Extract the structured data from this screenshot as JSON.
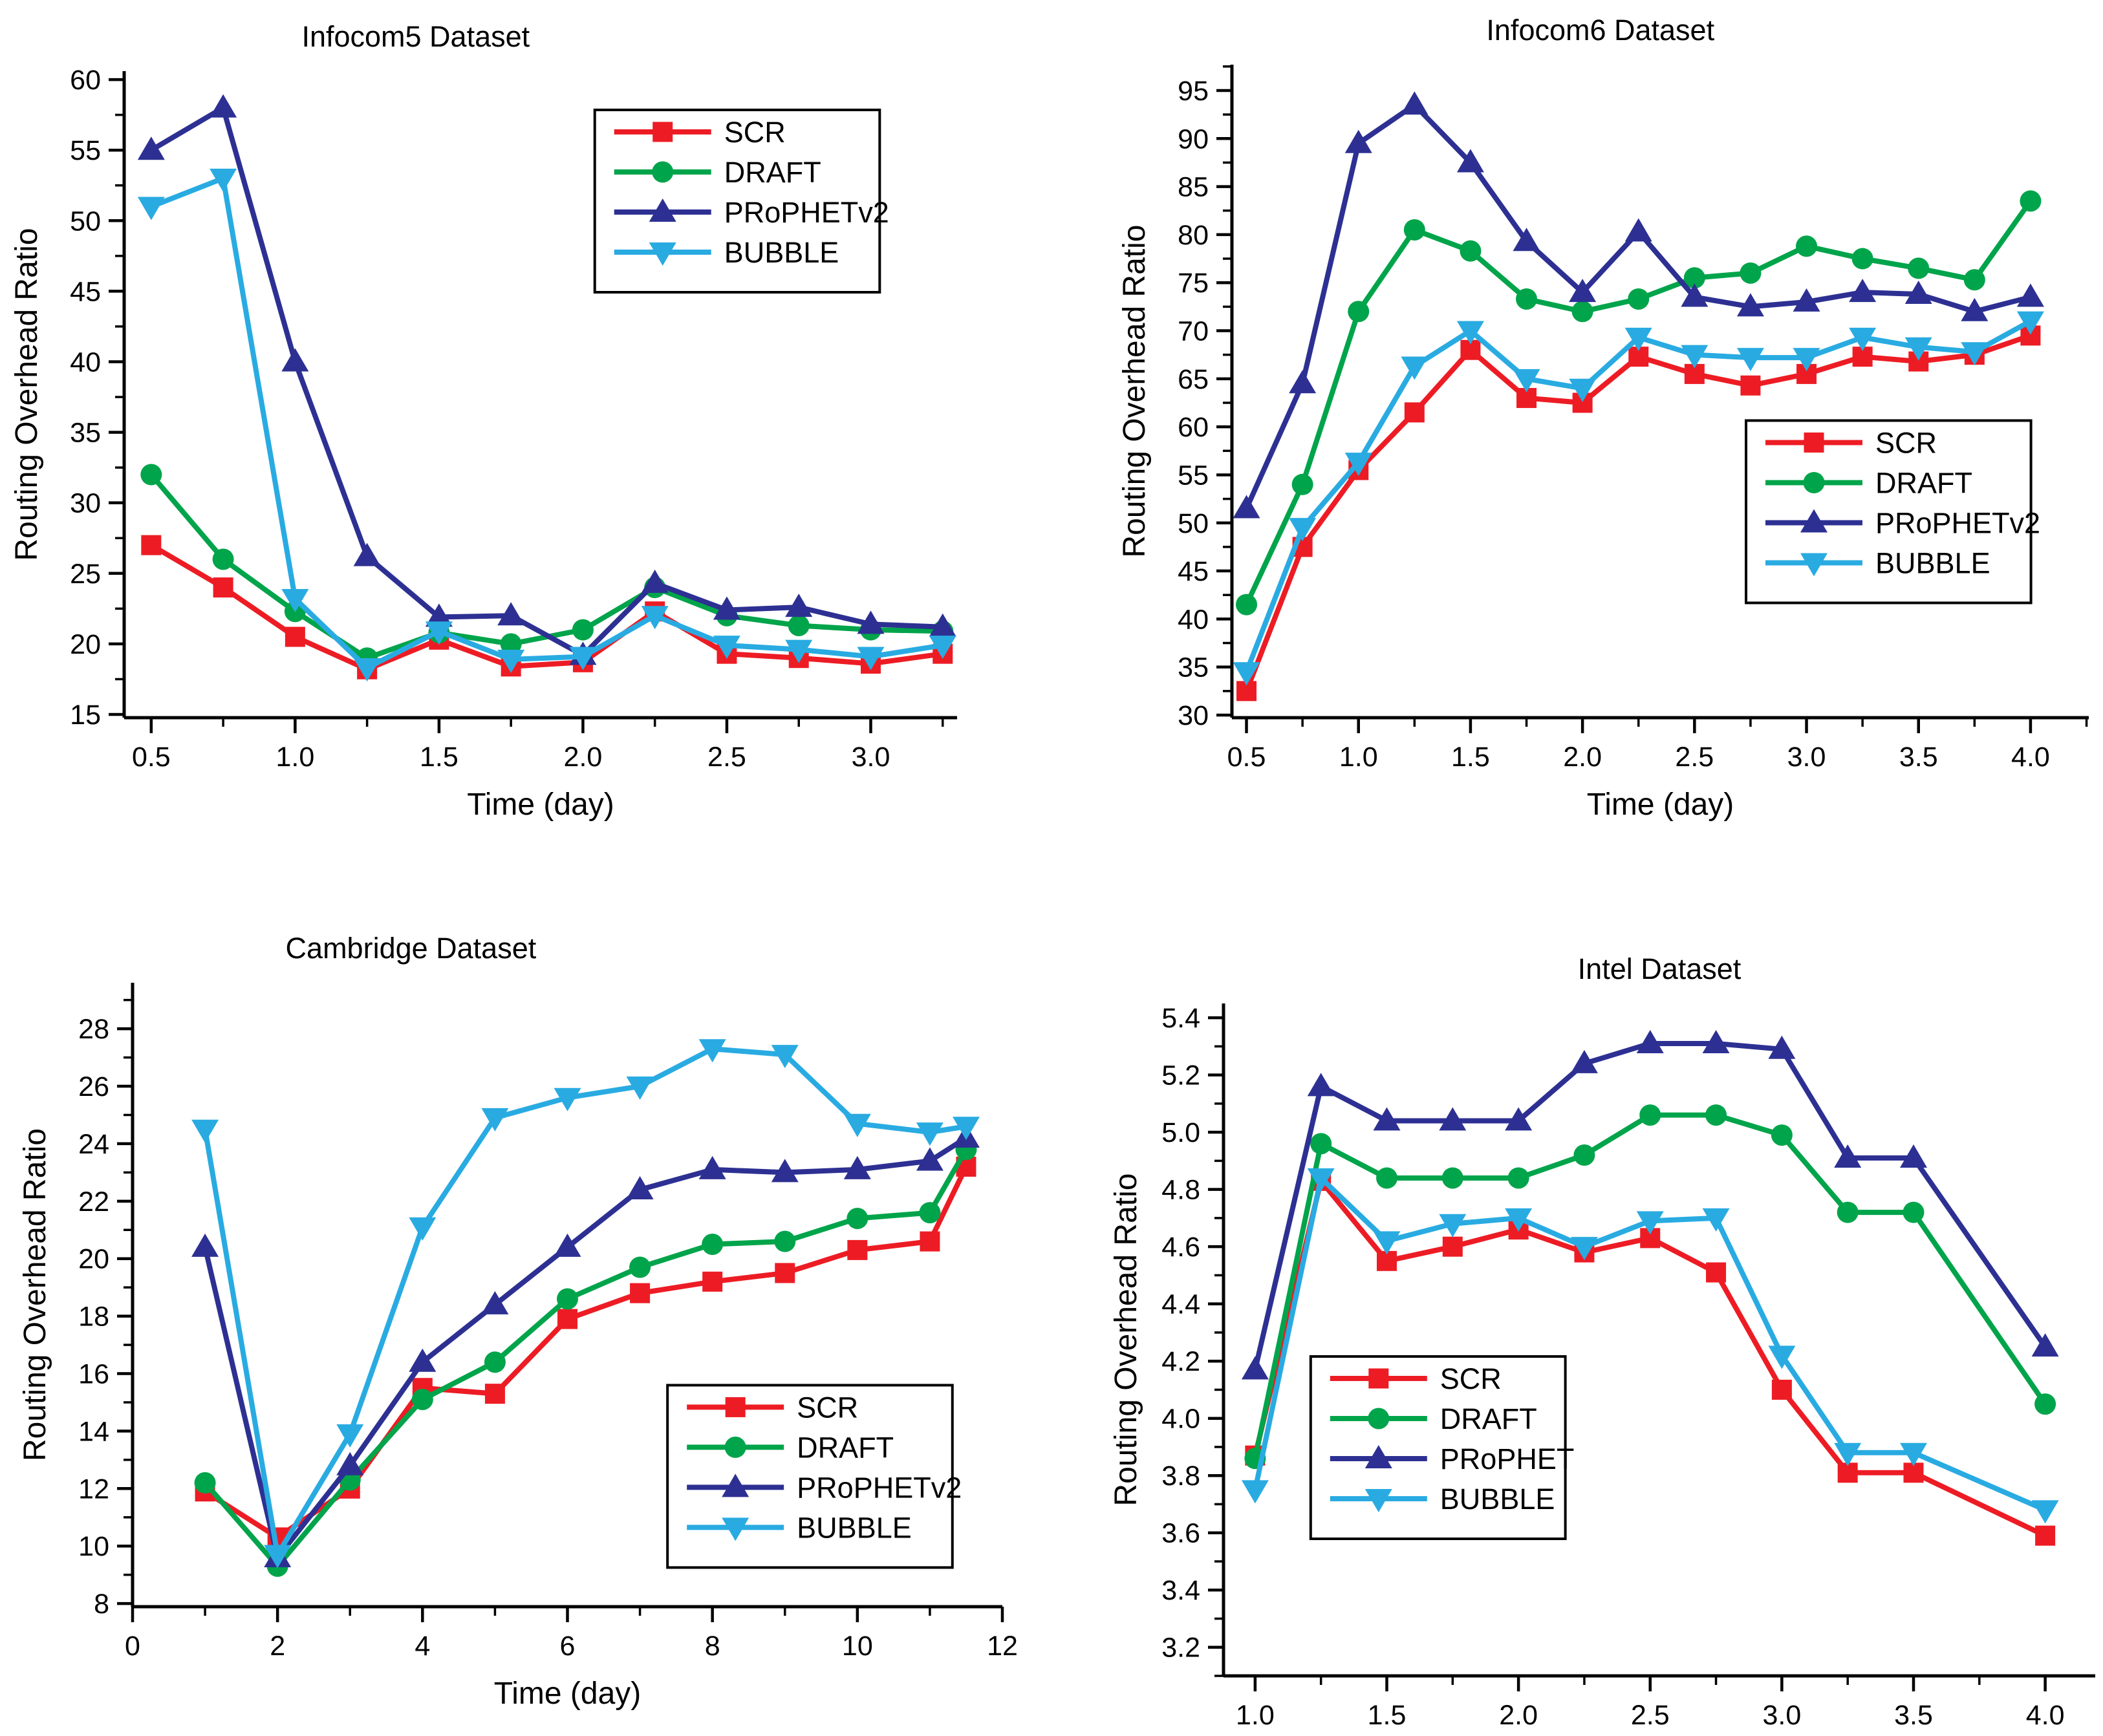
{
  "page": {
    "background": "#ffffff",
    "text_color": "#000000"
  },
  "colors": {
    "scr": "#ED1C24",
    "draft": "#00A44A",
    "prophet": "#2D3092",
    "bubble": "#29ABE2",
    "axis": "#000000"
  },
  "chart_data": [
    {
      "type": "line",
      "title": "Infocom5 Dataset",
      "xlabel": "Time (day)",
      "ylabel": "Routing Overhead Ratio",
      "xlim": [
        0.406,
        3.3
      ],
      "ylim": [
        14.77,
        60.6
      ],
      "grid": false,
      "legend_position": "inside-top-right",
      "legend_frac": {
        "x": 0.565,
        "y": 0.06
      },
      "title_center_frac": 0.35,
      "x_ticks": {
        "values": [
          0.5,
          1.0,
          1.5,
          2.0,
          2.5,
          3.0
        ],
        "labels": [
          "0.5",
          "1.0",
          "1.5",
          "2.0",
          "2.5",
          "3.0"
        ]
      },
      "y_ticks": {
        "values": [
          15,
          20,
          25,
          30,
          35,
          40,
          45,
          50,
          55,
          60
        ],
        "labels": [
          "15",
          "20",
          "25",
          "30",
          "35",
          "40",
          "45",
          "50",
          "55",
          "60"
        ]
      },
      "x": [
        0.5,
        0.75,
        1.0,
        1.25,
        1.5,
        1.75,
        2.0,
        2.25,
        2.5,
        2.75,
        3.0,
        3.25
      ],
      "series": [
        {
          "name": "SCR",
          "marker": "square",
          "color": "#ED1C24",
          "values": [
            27,
            24,
            20.5,
            18.2,
            20.3,
            18.4,
            18.7,
            22.3,
            19.3,
            19.0,
            18.6,
            19.3
          ]
        },
        {
          "name": "DRAFT",
          "marker": "circle",
          "color": "#00A44A",
          "values": [
            32,
            26,
            22.3,
            19.0,
            20.8,
            20.0,
            21.0,
            24.0,
            22.0,
            21.3,
            21.0,
            20.9
          ]
        },
        {
          "name": "PRoPHETv2",
          "marker": "triangle-up",
          "color": "#2D3092",
          "values": [
            55,
            58,
            40,
            26.2,
            21.9,
            22.0,
            19.2,
            24.3,
            22.4,
            22.6,
            21.4,
            21.2
          ]
        },
        {
          "name": "BUBBLE",
          "marker": "triangle-down",
          "color": "#29ABE2",
          "values": [
            51,
            53,
            23.2,
            18.3,
            20.9,
            18.9,
            19.1,
            22.0,
            19.9,
            19.6,
            19.1,
            19.9
          ]
        }
      ]
    },
    {
      "type": "line",
      "title": "Infocom6 Dataset",
      "xlabel": "Time (day)",
      "ylabel": "Routing Overhead Ratio",
      "xlim": [
        0.435,
        4.26
      ],
      "ylim": [
        29.73,
        97.69
      ],
      "grid": false,
      "legend_position": "inside-right-middle",
      "legend_frac": {
        "x": 0.6,
        "y": 0.545
      },
      "title_center_frac": 0.43,
      "x_ticks": {
        "values": [
          0.5,
          1.0,
          1.5,
          2.0,
          2.5,
          3.0,
          3.5,
          4.0
        ],
        "labels": [
          "0.5",
          "1.0",
          "1.5",
          "2.0",
          "2.5",
          "3.0",
          "3.5",
          "4.0"
        ]
      },
      "y_ticks": {
        "values": [
          30,
          35,
          40,
          45,
          50,
          55,
          60,
          65,
          70,
          75,
          80,
          85,
          90,
          95
        ],
        "labels": [
          "30",
          "35",
          "40",
          "45",
          "50",
          "55",
          "60",
          "65",
          "70",
          "75",
          "80",
          "85",
          "90",
          "95"
        ]
      },
      "x": [
        0.5,
        0.75,
        1.0,
        1.25,
        1.5,
        1.75,
        2.0,
        2.25,
        2.5,
        2.75,
        3.0,
        3.25,
        3.5,
        3.75,
        4.0
      ],
      "series": [
        {
          "name": "SCR",
          "marker": "square",
          "color": "#ED1C24",
          "values": [
            32.5,
            47.5,
            55.5,
            61.5,
            68,
            63,
            62.5,
            67.3,
            65.5,
            64.3,
            65.5,
            67.3,
            66.8,
            67.5,
            69.5
          ]
        },
        {
          "name": "DRAFT",
          "marker": "circle",
          "color": "#00A44A",
          "values": [
            41.5,
            54,
            72,
            80.5,
            78.3,
            73.3,
            72,
            73.3,
            75.5,
            76,
            78.8,
            77.5,
            76.5,
            75.3,
            83.5
          ]
        },
        {
          "name": "PRoPHETv2",
          "marker": "triangle-up",
          "color": "#2D3092",
          "values": [
            51.5,
            64.5,
            89.5,
            93.5,
            87.5,
            79.3,
            74,
            80.3,
            73.5,
            72.5,
            73,
            74,
            73.8,
            72,
            73.5
          ]
        },
        {
          "name": "BUBBLE",
          "marker": "triangle-down",
          "color": "#29ABE2",
          "values": [
            34.5,
            49.5,
            56.3,
            66.3,
            70,
            65,
            64,
            69.3,
            67.5,
            67.2,
            67.2,
            69.3,
            68.3,
            67.8,
            71
          ]
        }
      ]
    },
    {
      "type": "line",
      "title": "Cambridge Dataset",
      "xlabel": "Time (day)",
      "ylabel": "Routing Overhead Ratio",
      "xlim": [
        0,
        12.0
      ],
      "ylim": [
        7.89,
        29.6
      ],
      "grid": false,
      "legend_position": "inside-bottom-right",
      "legend_frac": {
        "x": 0.615,
        "y": 0.645
      },
      "title_center_frac": 0.32,
      "x_ticks": {
        "values": [
          0,
          2,
          4,
          6,
          8,
          10,
          12
        ],
        "labels": [
          "0",
          "2",
          "4",
          "6",
          "8",
          "10",
          "12"
        ]
      },
      "y_ticks": {
        "values": [
          8,
          10,
          12,
          14,
          16,
          18,
          20,
          22,
          24,
          26,
          28
        ],
        "labels": [
          "8",
          "10",
          "12",
          "14",
          "16",
          "18",
          "20",
          "22",
          "24",
          "26",
          "28"
        ]
      },
      "x": [
        1,
        2,
        3,
        4,
        5,
        6,
        7,
        8,
        9,
        10,
        11,
        11.5
      ],
      "series": [
        {
          "name": "SCR",
          "marker": "square",
          "color": "#ED1C24",
          "values": [
            11.9,
            10.3,
            12.0,
            15.5,
            15.3,
            17.9,
            18.8,
            19.2,
            19.5,
            20.3,
            20.6,
            23.2
          ]
        },
        {
          "name": "DRAFT",
          "marker": "circle",
          "color": "#00A44A",
          "values": [
            12.2,
            9.3,
            12.3,
            15.1,
            16.4,
            18.6,
            19.7,
            20.5,
            20.6,
            21.4,
            21.6,
            23.8
          ]
        },
        {
          "name": "PRoPHETv2",
          "marker": "triangle-up",
          "color": "#2D3092",
          "values": [
            20.4,
            9.6,
            12.8,
            16.4,
            18.4,
            20.4,
            22.4,
            23.1,
            23.0,
            23.1,
            23.4,
            24.2
          ]
        },
        {
          "name": "BUBBLE",
          "marker": "triangle-down",
          "color": "#29ABE2",
          "values": [
            24.5,
            9.7,
            13.9,
            21.1,
            24.9,
            25.6,
            26.0,
            27.3,
            27.1,
            24.7,
            24.4,
            24.6
          ]
        }
      ]
    },
    {
      "type": "line",
      "title": "Intel Dataset",
      "xlabel": "Time (day)",
      "ylabel": "Routing Overhead Ratio",
      "xlim": [
        0.88,
        4.19
      ],
      "ylim": [
        3.1,
        5.45
      ],
      "grid": false,
      "legend_position": "inside-left-middle",
      "legend_frac": {
        "x": 0.1,
        "y": 0.525
      },
      "title_center_frac": 0.5,
      "x_ticks": {
        "values": [
          1.0,
          1.5,
          2.0,
          2.5,
          3.0,
          3.5,
          4.0
        ],
        "labels": [
          "1.0",
          "1.5",
          "2.0",
          "2.5",
          "3.0",
          "3.5",
          "4.0"
        ]
      },
      "y_ticks": {
        "values": [
          3.2,
          3.4,
          3.6,
          3.8,
          4.0,
          4.2,
          4.4,
          4.6,
          4.8,
          5.0,
          5.2,
          5.4
        ],
        "labels": [
          "3.2",
          "3.4",
          "3.6",
          "3.8",
          "4.0",
          "4.2",
          "4.4",
          "4.6",
          "4.8",
          "5.0",
          "5.2",
          "5.4"
        ]
      },
      "x": [
        1.0,
        1.25,
        1.5,
        1.75,
        2.0,
        2.25,
        2.5,
        2.75,
        3.0,
        3.25,
        3.5,
        4.0
      ],
      "series": [
        {
          "name": "SCR",
          "marker": "square",
          "color": "#ED1C24",
          "values": [
            3.87,
            4.83,
            4.55,
            4.6,
            4.66,
            4.58,
            4.63,
            4.51,
            4.1,
            3.81,
            3.81,
            3.59
          ]
        },
        {
          "name": "DRAFT",
          "marker": "circle",
          "color": "#00A44A",
          "values": [
            3.86,
            4.96,
            4.84,
            4.84,
            4.84,
            4.92,
            5.06,
            5.06,
            4.99,
            4.72,
            4.72,
            4.05
          ]
        },
        {
          "name": "PRoPHET",
          "marker": "triangle-up",
          "color": "#2D3092",
          "values": [
            4.17,
            5.16,
            5.04,
            5.04,
            5.04,
            5.24,
            5.31,
            5.31,
            5.29,
            4.91,
            4.91,
            4.25
          ]
        },
        {
          "name": "BUBBLE",
          "marker": "triangle-down",
          "color": "#29ABE2",
          "values": [
            3.75,
            4.84,
            4.62,
            4.68,
            4.7,
            4.6,
            4.69,
            4.7,
            4.22,
            3.88,
            3.88,
            3.68
          ]
        }
      ]
    }
  ]
}
